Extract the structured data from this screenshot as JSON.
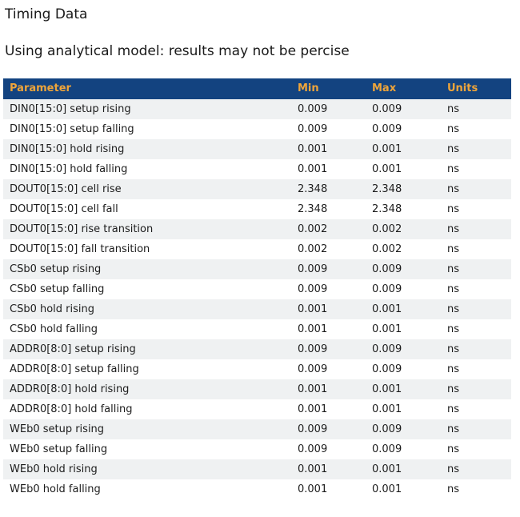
{
  "page": {
    "title": "Timing Data",
    "subtitle": "Using analytical model: results may not be percise"
  },
  "colors": {
    "header_bg": "#134380",
    "header_text": "#efa53a",
    "row_alt_bg": "#eff1f2",
    "row_bg": "#ffffff",
    "text_color": "#1c1c1c"
  },
  "table": {
    "columns": [
      "Parameter",
      "Min",
      "Max",
      "Units"
    ],
    "rows": [
      {
        "parameter": "DIN0[15:0] setup rising",
        "min": "0.009",
        "max": "0.009",
        "units": "ns"
      },
      {
        "parameter": "DIN0[15:0] setup falling",
        "min": "0.009",
        "max": "0.009",
        "units": "ns"
      },
      {
        "parameter": "DIN0[15:0] hold rising",
        "min": "0.001",
        "max": "0.001",
        "units": "ns"
      },
      {
        "parameter": "DIN0[15:0] hold falling",
        "min": "0.001",
        "max": "0.001",
        "units": "ns"
      },
      {
        "parameter": "DOUT0[15:0] cell rise",
        "min": "2.348",
        "max": "2.348",
        "units": "ns"
      },
      {
        "parameter": "DOUT0[15:0] cell fall",
        "min": "2.348",
        "max": "2.348",
        "units": "ns"
      },
      {
        "parameter": "DOUT0[15:0] rise transition",
        "min": "0.002",
        "max": "0.002",
        "units": "ns"
      },
      {
        "parameter": "DOUT0[15:0] fall transition",
        "min": "0.002",
        "max": "0.002",
        "units": "ns"
      },
      {
        "parameter": "CSb0 setup rising",
        "min": "0.009",
        "max": "0.009",
        "units": "ns"
      },
      {
        "parameter": "CSb0 setup falling",
        "min": "0.009",
        "max": "0.009",
        "units": "ns"
      },
      {
        "parameter": "CSb0 hold rising",
        "min": "0.001",
        "max": "0.001",
        "units": "ns"
      },
      {
        "parameter": "CSb0 hold falling",
        "min": "0.001",
        "max": "0.001",
        "units": "ns"
      },
      {
        "parameter": "ADDR0[8:0] setup rising",
        "min": "0.009",
        "max": "0.009",
        "units": "ns"
      },
      {
        "parameter": "ADDR0[8:0] setup falling",
        "min": "0.009",
        "max": "0.009",
        "units": "ns"
      },
      {
        "parameter": "ADDR0[8:0] hold rising",
        "min": "0.001",
        "max": "0.001",
        "units": "ns"
      },
      {
        "parameter": "ADDR0[8:0] hold falling",
        "min": "0.001",
        "max": "0.001",
        "units": "ns"
      },
      {
        "parameter": "WEb0 setup rising",
        "min": "0.009",
        "max": "0.009",
        "units": "ns"
      },
      {
        "parameter": "WEb0 setup falling",
        "min": "0.009",
        "max": "0.009",
        "units": "ns"
      },
      {
        "parameter": "WEb0 hold rising",
        "min": "0.001",
        "max": "0.001",
        "units": "ns"
      },
      {
        "parameter": "WEb0 hold falling",
        "min": "0.001",
        "max": "0.001",
        "units": "ns"
      }
    ]
  }
}
